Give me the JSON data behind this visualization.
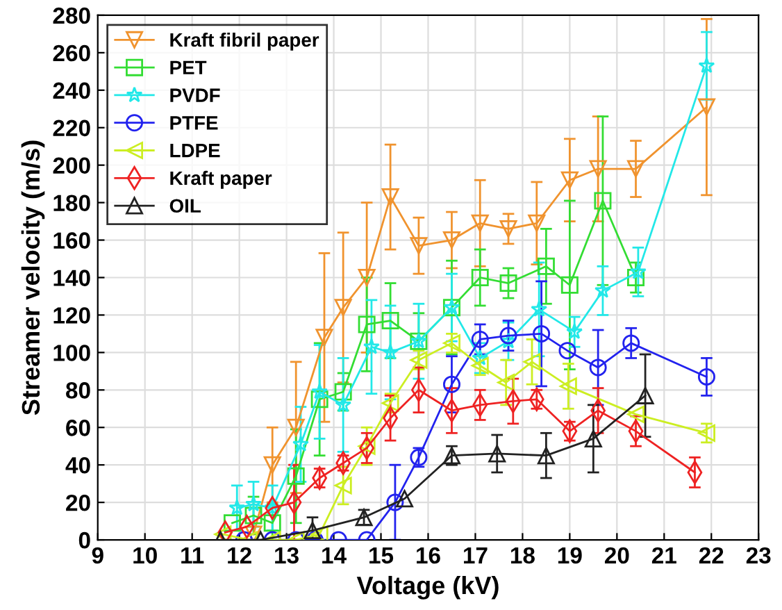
{
  "chart_data": {
    "type": "line",
    "xlabel": "Voltage (kV)",
    "ylabel": "Streamer velocity (m/s)",
    "xlim": [
      9,
      23
    ],
    "xticks": [
      9,
      10,
      11,
      12,
      13,
      14,
      15,
      16,
      17,
      18,
      19,
      20,
      21,
      22,
      23
    ],
    "ylim": [
      0,
      280
    ],
    "yticks": [
      0,
      20,
      40,
      60,
      80,
      100,
      120,
      140,
      160,
      180,
      200,
      220,
      240,
      260,
      280
    ],
    "grid": true,
    "legend": "top left",
    "line_style": "solid",
    "series": [
      {
        "name": "Kraft fibril paper",
        "color": "#f0932e",
        "marker": "triangle_down",
        "x": [
          12.3,
          12.7,
          13.2,
          13.8,
          14.2,
          14.7,
          15.2,
          15.8,
          16.5,
          17.1,
          17.7,
          18.3,
          19.0,
          19.6,
          20.4,
          21.9
        ],
        "values": [
          3,
          40,
          60,
          108,
          124,
          140,
          183,
          157,
          160,
          169,
          166,
          169,
          192,
          198,
          198,
          231
        ],
        "errors": [
          null,
          20,
          35,
          45,
          40,
          40,
          28,
          15,
          15,
          23,
          8,
          22,
          22,
          28,
          15,
          47
        ]
      },
      {
        "name": "PET",
        "color": "#33dd33",
        "marker": "square",
        "x": [
          11.85,
          12.3,
          12.7,
          13.2,
          13.7,
          14.2,
          14.7,
          15.2,
          15.8,
          16.5,
          17.1,
          17.7,
          18.5,
          19.0,
          19.7,
          20.4
        ],
        "values": [
          9,
          13,
          9,
          34,
          75,
          79,
          115,
          117,
          106,
          124,
          140,
          137,
          146,
          136,
          181,
          140
        ],
        "errors": [
          null,
          10,
          10,
          25,
          30,
          10,
          25,
          20,
          15,
          25,
          15,
          8,
          20,
          45,
          45,
          8
        ]
      },
      {
        "name": "PVDF",
        "color": "#22e8e8",
        "marker": "star",
        "x": [
          11.95,
          12.3,
          12.7,
          13.3,
          13.7,
          14.2,
          14.8,
          15.2,
          15.8,
          16.5,
          17.1,
          17.7,
          18.35,
          19.1,
          19.7,
          20.45,
          21.9
        ],
        "values": [
          17,
          19,
          17,
          51,
          79,
          72,
          103,
          100,
          106,
          124,
          97,
          106,
          123,
          111,
          133,
          143,
          253
        ],
        "errors": [
          12,
          12,
          12,
          20,
          25,
          25,
          25,
          25,
          20,
          18,
          8,
          10,
          25,
          8,
          13,
          13,
          18
        ]
      },
      {
        "name": "PTFE",
        "color": "#2222ee",
        "marker": "circle",
        "x": [
          12.1,
          12.7,
          13.2,
          13.6,
          14.1,
          14.7,
          15.3,
          15.8,
          16.5,
          17.1,
          17.7,
          18.4,
          18.95,
          19.6,
          20.3,
          21.9
        ],
        "values": [
          0,
          0,
          0,
          0,
          0,
          0,
          20,
          44,
          83,
          107,
          109,
          110,
          101,
          92,
          105,
          87
        ],
        "errors": [
          null,
          null,
          null,
          null,
          null,
          null,
          20,
          5,
          15,
          8,
          8,
          28,
          null,
          20,
          8,
          10
        ]
      },
      {
        "name": "LDPE",
        "color": "#ccee22",
        "marker": "triangle_left",
        "x": [
          11.65,
          12.2,
          12.7,
          13.2,
          13.7,
          14.2,
          14.7,
          15.2,
          15.8,
          16.5,
          17.1,
          17.65,
          18.2,
          18.97,
          20.4,
          21.9
        ],
        "values": [
          3,
          0,
          0,
          0,
          3,
          29,
          50,
          73,
          96,
          105,
          93,
          84,
          95,
          82,
          67,
          57
        ],
        "errors": [
          null,
          null,
          null,
          null,
          null,
          10,
          10,
          5,
          5,
          5,
          5,
          12,
          12,
          12,
          null,
          5
        ]
      },
      {
        "name": "Kraft paper",
        "color": "#ee2222",
        "marker": "diamond",
        "x": [
          11.7,
          12.16,
          12.7,
          13.16,
          13.7,
          14.2,
          14.7,
          15.2,
          15.8,
          16.5,
          17.1,
          17.8,
          18.3,
          19.0,
          19.6,
          20.4,
          21.65
        ],
        "values": [
          4,
          7,
          17,
          20,
          33,
          41,
          49,
          65,
          80,
          69,
          72,
          74,
          75,
          58,
          69,
          58,
          36
        ],
        "errors": [
          null,
          null,
          null,
          20,
          5,
          4,
          8,
          12,
          12,
          12,
          8,
          12,
          5,
          5,
          12,
          8,
          8
        ]
      },
      {
        "name": "OIL",
        "color": "#222222",
        "marker": "triangle",
        "x": [
          11.6,
          12.45,
          13.55,
          14.64,
          15.5,
          16.5,
          17.46,
          18.5,
          19.5,
          20.6
        ],
        "values": [
          0,
          0,
          5,
          12,
          22,
          45,
          46,
          45,
          54,
          77
        ],
        "errors": [
          null,
          null,
          7,
          4,
          null,
          5,
          10,
          12,
          18,
          22
        ]
      }
    ]
  }
}
